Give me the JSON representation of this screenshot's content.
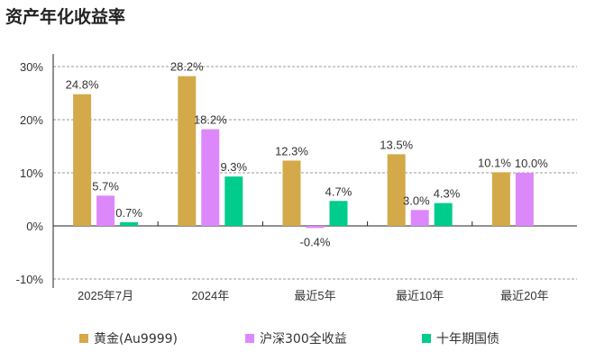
{
  "chart_data": {
    "type": "bar",
    "title": "资产年化收益率",
    "categories": [
      "2025年7月",
      "2024年",
      "最近5年",
      "最近10年",
      "最近20年"
    ],
    "series": [
      {
        "name": "黄金(Au9999)",
        "color": "#D4A94A",
        "values": [
          24.8,
          28.2,
          12.3,
          13.5,
          10.1
        ],
        "labels": [
          "24.8%",
          "28.2%",
          "12.3%",
          "13.5%",
          "10.1%"
        ]
      },
      {
        "name": "沪深300全收益",
        "color": "#DD88FA",
        "values": [
          5.7,
          18.2,
          -0.4,
          3.0,
          10.0
        ],
        "labels": [
          "5.7%",
          "18.2%",
          "-0.4%",
          "3.0%",
          "10.0%"
        ]
      },
      {
        "name": "十年期国债",
        "color": "#00CC8C",
        "values": [
          0.7,
          9.3,
          4.7,
          4.3,
          null
        ],
        "labels": [
          "0.7%",
          "9.3%",
          "4.7%",
          "4.3%",
          null
        ]
      }
    ],
    "ylim": [
      -10,
      30
    ],
    "yticks": [
      -10,
      0,
      10,
      20,
      30
    ],
    "ytick_labels": [
      "-10%",
      "0%",
      "10%",
      "20%",
      "30%"
    ],
    "grid": true,
    "legend": "bottom",
    "xlabel": "",
    "ylabel": ""
  }
}
